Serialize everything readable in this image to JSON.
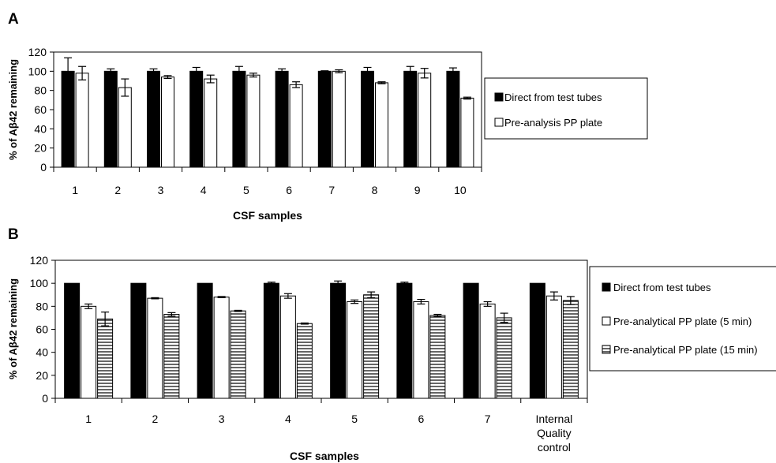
{
  "chart_data": [
    {
      "panel": "A",
      "type": "bar",
      "ylabel": "% of Aβ42 remaining",
      "xlabel": "CSF samples",
      "ylim": [
        0,
        120
      ],
      "yticks": [
        "0",
        "20",
        "40",
        "60",
        "80",
        "100",
        "120"
      ],
      "categories": [
        "1",
        "2",
        "3",
        "4",
        "5",
        "6",
        "7",
        "8",
        "9",
        "10"
      ],
      "legend_position": "right",
      "series": [
        {
          "name": "Direct from test tubes",
          "pattern": "solid",
          "color": "#000000",
          "values": [
            100,
            100,
            100,
            100,
            100,
            100,
            100,
            100,
            100,
            100
          ],
          "errors": [
            14,
            2.5,
            2.5,
            4,
            5,
            2.5,
            0.5,
            4,
            5,
            3.5
          ]
        },
        {
          "name": "Pre-analysis PP plate",
          "pattern": "white",
          "color": "#ffffff",
          "values": [
            98,
            83,
            94,
            92,
            96,
            86,
            100,
            88,
            98,
            72
          ],
          "errors": [
            7,
            9,
            1.5,
            4,
            2,
            3,
            1.5,
            1,
            5,
            1
          ]
        }
      ]
    },
    {
      "panel": "B",
      "type": "bar",
      "ylabel": "% of Aβ42 remaining",
      "xlabel": "CSF samples",
      "ylim": [
        0,
        120
      ],
      "yticks": [
        "0",
        "20",
        "40",
        "60",
        "80",
        "100",
        "120"
      ],
      "categories": [
        "1",
        "2",
        "3",
        "4",
        "5",
        "6",
        "7",
        "Internal Quality control"
      ],
      "legend_position": "right",
      "series": [
        {
          "name": "Direct from test tubes",
          "pattern": "solid",
          "color": "#000000",
          "values": [
            100,
            100,
            100,
            100,
            100,
            100,
            100,
            100
          ],
          "errors": [
            0,
            0,
            0,
            1,
            2,
            1,
            0,
            0
          ]
        },
        {
          "name": "Pre-analytical PP plate (5 min)",
          "pattern": "white",
          "color": "#ffffff",
          "values": [
            80,
            87,
            88,
            89,
            84,
            84,
            82,
            89
          ],
          "errors": [
            2,
            0.5,
            0.5,
            2,
            1.5,
            2,
            2,
            3.5
          ]
        },
        {
          "name": "Pre-analytical PP plate (15 min)",
          "pattern": "hstripes",
          "color": "#ffffff",
          "values": [
            69,
            73,
            76,
            65,
            90,
            72,
            70,
            85
          ],
          "errors": [
            6,
            1.5,
            0.5,
            0.5,
            2.5,
            1,
            4,
            3.5
          ]
        }
      ]
    }
  ]
}
